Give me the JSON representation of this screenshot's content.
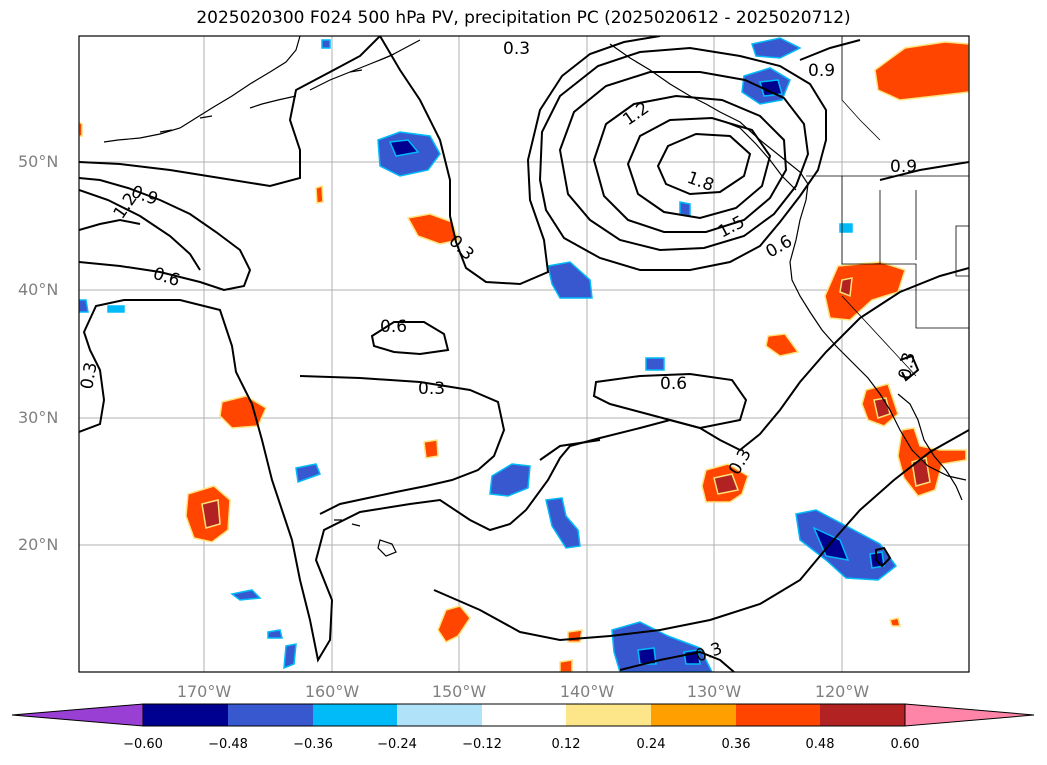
{
  "title": "2025020300 F024 500 hPa PV, precipitation PC (2025020612 - 2025020712)",
  "latitude_labels": [
    "50°N",
    "40°N",
    "30°N",
    "20°N"
  ],
  "longitude_labels": [
    "170°W",
    "160°W",
    "150°W",
    "140°W",
    "130°W",
    "120°W"
  ],
  "contour_labels": [
    "0.3",
    "0.9",
    "1.2",
    "1.8",
    "1.5",
    "0.6",
    "0.9",
    "1.2",
    "0.9",
    "0.6",
    "0.3",
    "0.6",
    "0.3",
    "0.3",
    "0.6",
    "0.3",
    "0.3",
    "0.3",
    "0.3"
  ],
  "colorbar": {
    "ticks": [
      "−0.60",
      "−0.48",
      "−0.36",
      "−0.24",
      "−0.12",
      "0.12",
      "0.24",
      "0.36",
      "0.48",
      "0.60"
    ],
    "colors": [
      "#9a3fd4",
      "#000090",
      "#3858d0",
      "#00bbf8",
      "#b0e2fa",
      "#ffffff",
      "#fde68a",
      "#ffa000",
      "#ff4500",
      "#b22222",
      "#ff85a8"
    ]
  },
  "colors": {
    "contour": "#000000",
    "coastline": "#000000",
    "grid": "#b0b0b0",
    "axis_label": "#808080"
  }
}
